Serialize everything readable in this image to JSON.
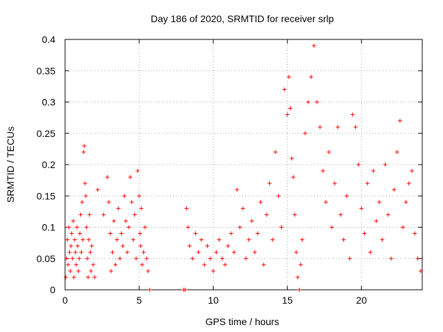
{
  "chart_data": {
    "type": "scatter",
    "title": "Day 186 of 2020, SRMTID for receiver srlp",
    "xlabel": "GPS time / hours",
    "ylabel": "SRMTID / TECUs",
    "xlim": [
      0,
      24.1
    ],
    "ylim": [
      0,
      0.4
    ],
    "x_ticks": [
      0,
      5,
      10,
      15,
      20
    ],
    "x_tick_labels": [
      "0",
      "5",
      "10",
      "15",
      "20"
    ],
    "y_ticks": [
      0,
      0.05,
      0.1,
      0.15,
      0.2,
      0.25,
      0.3,
      0.35,
      0.4
    ],
    "y_tick_labels": [
      "0",
      "0.05",
      "0.1",
      "0.15",
      "0.2",
      "0.25",
      "0.3",
      "0.35",
      "0.4"
    ],
    "grid": true,
    "marker": "+",
    "color": "#ff0000",
    "series": [
      {
        "name": "srlp",
        "points": [
          [
            0.05,
            0.02
          ],
          [
            0.1,
            0.05
          ],
          [
            0.15,
            0.08
          ],
          [
            0.2,
            0.04
          ],
          [
            0.25,
            0.1
          ],
          [
            0.3,
            0.06
          ],
          [
            0.35,
            0.03
          ],
          [
            0.4,
            0.07
          ],
          [
            0.45,
            0.09
          ],
          [
            0.5,
            0.05
          ],
          [
            0.55,
            0.11
          ],
          [
            0.6,
            0.02
          ],
          [
            0.65,
            0.08
          ],
          [
            0.7,
            0.06
          ],
          [
            0.75,
            0.04
          ],
          [
            0.8,
            0.1
          ],
          [
            0.85,
            0.07
          ],
          [
            0.9,
            0.03
          ],
          [
            0.95,
            0.05
          ],
          [
            1.0,
            0.09
          ],
          [
            1.05,
            0.12
          ],
          [
            1.1,
            0.06
          ],
          [
            1.15,
            0.14
          ],
          [
            1.2,
            0.08
          ],
          [
            1.25,
            0.22
          ],
          [
            1.3,
            0.23
          ],
          [
            1.35,
            0.17
          ],
          [
            1.4,
            0.15
          ],
          [
            1.45,
            0.1
          ],
          [
            1.5,
            0.05
          ],
          [
            1.55,
            0.02
          ],
          [
            1.6,
            0.08
          ],
          [
            1.65,
            0.12
          ],
          [
            1.7,
            0.06
          ],
          [
            1.75,
            0.03
          ],
          [
            1.8,
            0.07
          ],
          [
            1.9,
            0.04
          ],
          [
            2.0,
            0.02
          ],
          [
            2.2,
            0.16
          ],
          [
            2.6,
            0.12
          ],
          [
            2.85,
            0.18
          ],
          [
            2.95,
            0.14
          ],
          [
            3.05,
            0.09
          ],
          [
            3.1,
            0.03
          ],
          [
            3.2,
            0.06
          ],
          [
            3.3,
            0.11
          ],
          [
            3.4,
            0.04
          ],
          [
            3.5,
            0.08
          ],
          [
            3.6,
            0.13
          ],
          [
            3.7,
            0.05
          ],
          [
            3.8,
            0.09
          ],
          [
            3.9,
            0.07
          ],
          [
            4.0,
            0.15
          ],
          [
            4.1,
            0.11
          ],
          [
            4.2,
            0.06
          ],
          [
            4.3,
            0.1
          ],
          [
            4.4,
            0.18
          ],
          [
            4.5,
            0.14
          ],
          [
            4.6,
            0.08
          ],
          [
            4.7,
            0.12
          ],
          [
            4.8,
            0.05
          ],
          [
            4.9,
            0.19
          ],
          [
            5.0,
            0.15
          ],
          [
            5.05,
            0.09
          ],
          [
            5.1,
            0.07
          ],
          [
            5.15,
            0.13
          ],
          [
            5.2,
            0.04
          ],
          [
            5.3,
            0.06
          ],
          [
            5.4,
            0.1
          ],
          [
            5.5,
            0.05
          ],
          [
            5.6,
            0.03
          ],
          [
            5.7,
            0.0
          ],
          [
            8.0,
            0.0
          ],
          [
            8.1,
            0.0
          ],
          [
            8.2,
            0.13
          ],
          [
            8.3,
            0.1
          ],
          [
            8.4,
            0.07
          ],
          [
            8.6,
            0.05
          ],
          [
            8.8,
            0.09
          ],
          [
            9.0,
            0.06
          ],
          [
            9.2,
            0.08
          ],
          [
            9.4,
            0.04
          ],
          [
            9.6,
            0.07
          ],
          [
            9.8,
            0.05
          ],
          [
            10.0,
            0.03
          ],
          [
            10.2,
            0.06
          ],
          [
            10.4,
            0.08
          ],
          [
            10.6,
            0.05
          ],
          [
            10.8,
            0.04
          ],
          [
            11.0,
            0.07
          ],
          [
            11.2,
            0.09
          ],
          [
            11.4,
            0.06
          ],
          [
            11.6,
            0.16
          ],
          [
            11.8,
            0.1
          ],
          [
            12.0,
            0.13
          ],
          [
            12.2,
            0.05
          ],
          [
            12.4,
            0.08
          ],
          [
            12.6,
            0.11
          ],
          [
            12.8,
            0.06
          ],
          [
            13.0,
            0.09
          ],
          [
            13.2,
            0.14
          ],
          [
            13.4,
            0.04
          ],
          [
            13.6,
            0.12
          ],
          [
            13.8,
            0.17
          ],
          [
            14.0,
            0.08
          ],
          [
            14.2,
            0.22
          ],
          [
            14.4,
            0.15
          ],
          [
            14.6,
            0.1
          ],
          [
            14.8,
            0.32
          ],
          [
            15.0,
            0.28
          ],
          [
            15.1,
            0.34
          ],
          [
            15.2,
            0.29
          ],
          [
            15.3,
            0.21
          ],
          [
            15.4,
            0.18
          ],
          [
            15.5,
            0.12
          ],
          [
            15.6,
            0.06
          ],
          [
            15.7,
            0.02
          ],
          [
            15.8,
            0.0
          ],
          [
            15.9,
            0.04
          ],
          [
            16.0,
            0.08
          ],
          [
            16.2,
            0.25
          ],
          [
            16.4,
            0.3
          ],
          [
            16.6,
            0.34
          ],
          [
            16.8,
            0.39
          ],
          [
            17.0,
            0.3
          ],
          [
            17.2,
            0.26
          ],
          [
            17.4,
            0.19
          ],
          [
            17.6,
            0.14
          ],
          [
            17.8,
            0.22
          ],
          [
            18.0,
            0.1
          ],
          [
            18.2,
            0.17
          ],
          [
            18.4,
            0.26
          ],
          [
            18.6,
            0.12
          ],
          [
            18.8,
            0.08
          ],
          [
            19.0,
            0.15
          ],
          [
            19.2,
            0.05
          ],
          [
            19.4,
            0.28
          ],
          [
            19.6,
            0.26
          ],
          [
            19.8,
            0.2
          ],
          [
            20.0,
            0.13
          ],
          [
            20.2,
            0.09
          ],
          [
            20.4,
            0.17
          ],
          [
            20.6,
            0.06
          ],
          [
            20.8,
            0.19
          ],
          [
            21.0,
            0.11
          ],
          [
            21.2,
            0.14
          ],
          [
            21.4,
            0.08
          ],
          [
            21.6,
            0.2
          ],
          [
            21.8,
            0.12
          ],
          [
            22.0,
            0.05
          ],
          [
            22.2,
            0.16
          ],
          [
            22.4,
            0.22
          ],
          [
            22.6,
            0.27
          ],
          [
            22.8,
            0.1
          ],
          [
            23.0,
            0.14
          ],
          [
            23.2,
            0.17
          ],
          [
            23.4,
            0.19
          ],
          [
            23.6,
            0.09
          ],
          [
            23.8,
            0.05
          ],
          [
            24.0,
            0.03
          ]
        ]
      }
    ]
  }
}
